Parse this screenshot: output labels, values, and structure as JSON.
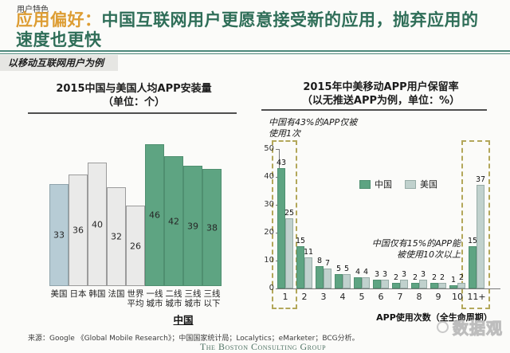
{
  "header": {
    "eyebrow": "用户特色",
    "title_accent": "应用偏好：",
    "title_line1": "中国互联网用户更愿意接受新的应用，抛弃应用的",
    "title_line2": "速度也更快",
    "tag": "以移动互联网用户为例"
  },
  "colors": {
    "accent_orange": "#dd9d33",
    "title_green": "#2f6e58",
    "header_rule_teal": "#4d887b",
    "china_bar_green": "#5ea482",
    "us_bar_blue_gray_left": "#b7ccd5",
    "us_bar_gray_right": "#c0d1cd",
    "neutral_bar_gray": "#eaeae9",
    "highlight_dashed_khaki": "#b3a75a"
  },
  "chart_data": [
    {
      "type": "bar",
      "title": "2015中国与美国人均APP安装量",
      "subtitle": "（单位：个）",
      "categories": [
        "美国",
        "日本",
        "韩国",
        "法国",
        "世界\n平均",
        "一线\n城市",
        "二线\n城市",
        "三线\n城市",
        "三线\n以下"
      ],
      "values": [
        33,
        36,
        40,
        32,
        26,
        46,
        42,
        39,
        38
      ],
      "bar_styles": [
        "blue",
        "gray",
        "gray",
        "gray",
        "gray",
        "green",
        "green",
        "green",
        "green"
      ],
      "group_label": "中国",
      "xlabel": "",
      "ylabel": "",
      "gridlines": false,
      "value_labels": "inside"
    },
    {
      "type": "grouped-bar",
      "title": "2015年中美移动APP用户保留率",
      "subtitle": "（以无推送APP为例，单位：%）",
      "categories": [
        "1",
        "2",
        "3",
        "4",
        "5",
        "6",
        "7",
        "8",
        "9",
        "10",
        "11+"
      ],
      "series": [
        {
          "name": "中国",
          "style": "cn",
          "values": [
            43,
            15,
            8,
            5,
            4,
            3,
            2,
            2,
            2,
            1,
            15
          ]
        },
        {
          "name": "美国",
          "style": "us",
          "values": [
            25,
            11,
            7,
            5,
            4,
            3,
            3,
            3,
            2,
            2,
            37
          ]
        }
      ],
      "ylim": [
        0,
        50
      ],
      "yticks": [
        0,
        10,
        20,
        30,
        40,
        50
      ],
      "xlabel": "APP使用次数（全生命周期）",
      "ylabel": "",
      "legend_position": "upper-center",
      "gridlines": false,
      "value_labels": "above",
      "annotations": [
        "中国有43%的APP仅被\n使用1次",
        "中国仅有15%的APP能\n被使用10次以上"
      ],
      "highlighted_categories": [
        "1",
        "11+"
      ]
    }
  ],
  "footer": {
    "source": "来源：Google 《Global Mobile Research》；中国国家统计局；Localytics；eMarketer；BCG分析。",
    "brand": "The Boston Consulting Group",
    "watermark": "数据观"
  }
}
